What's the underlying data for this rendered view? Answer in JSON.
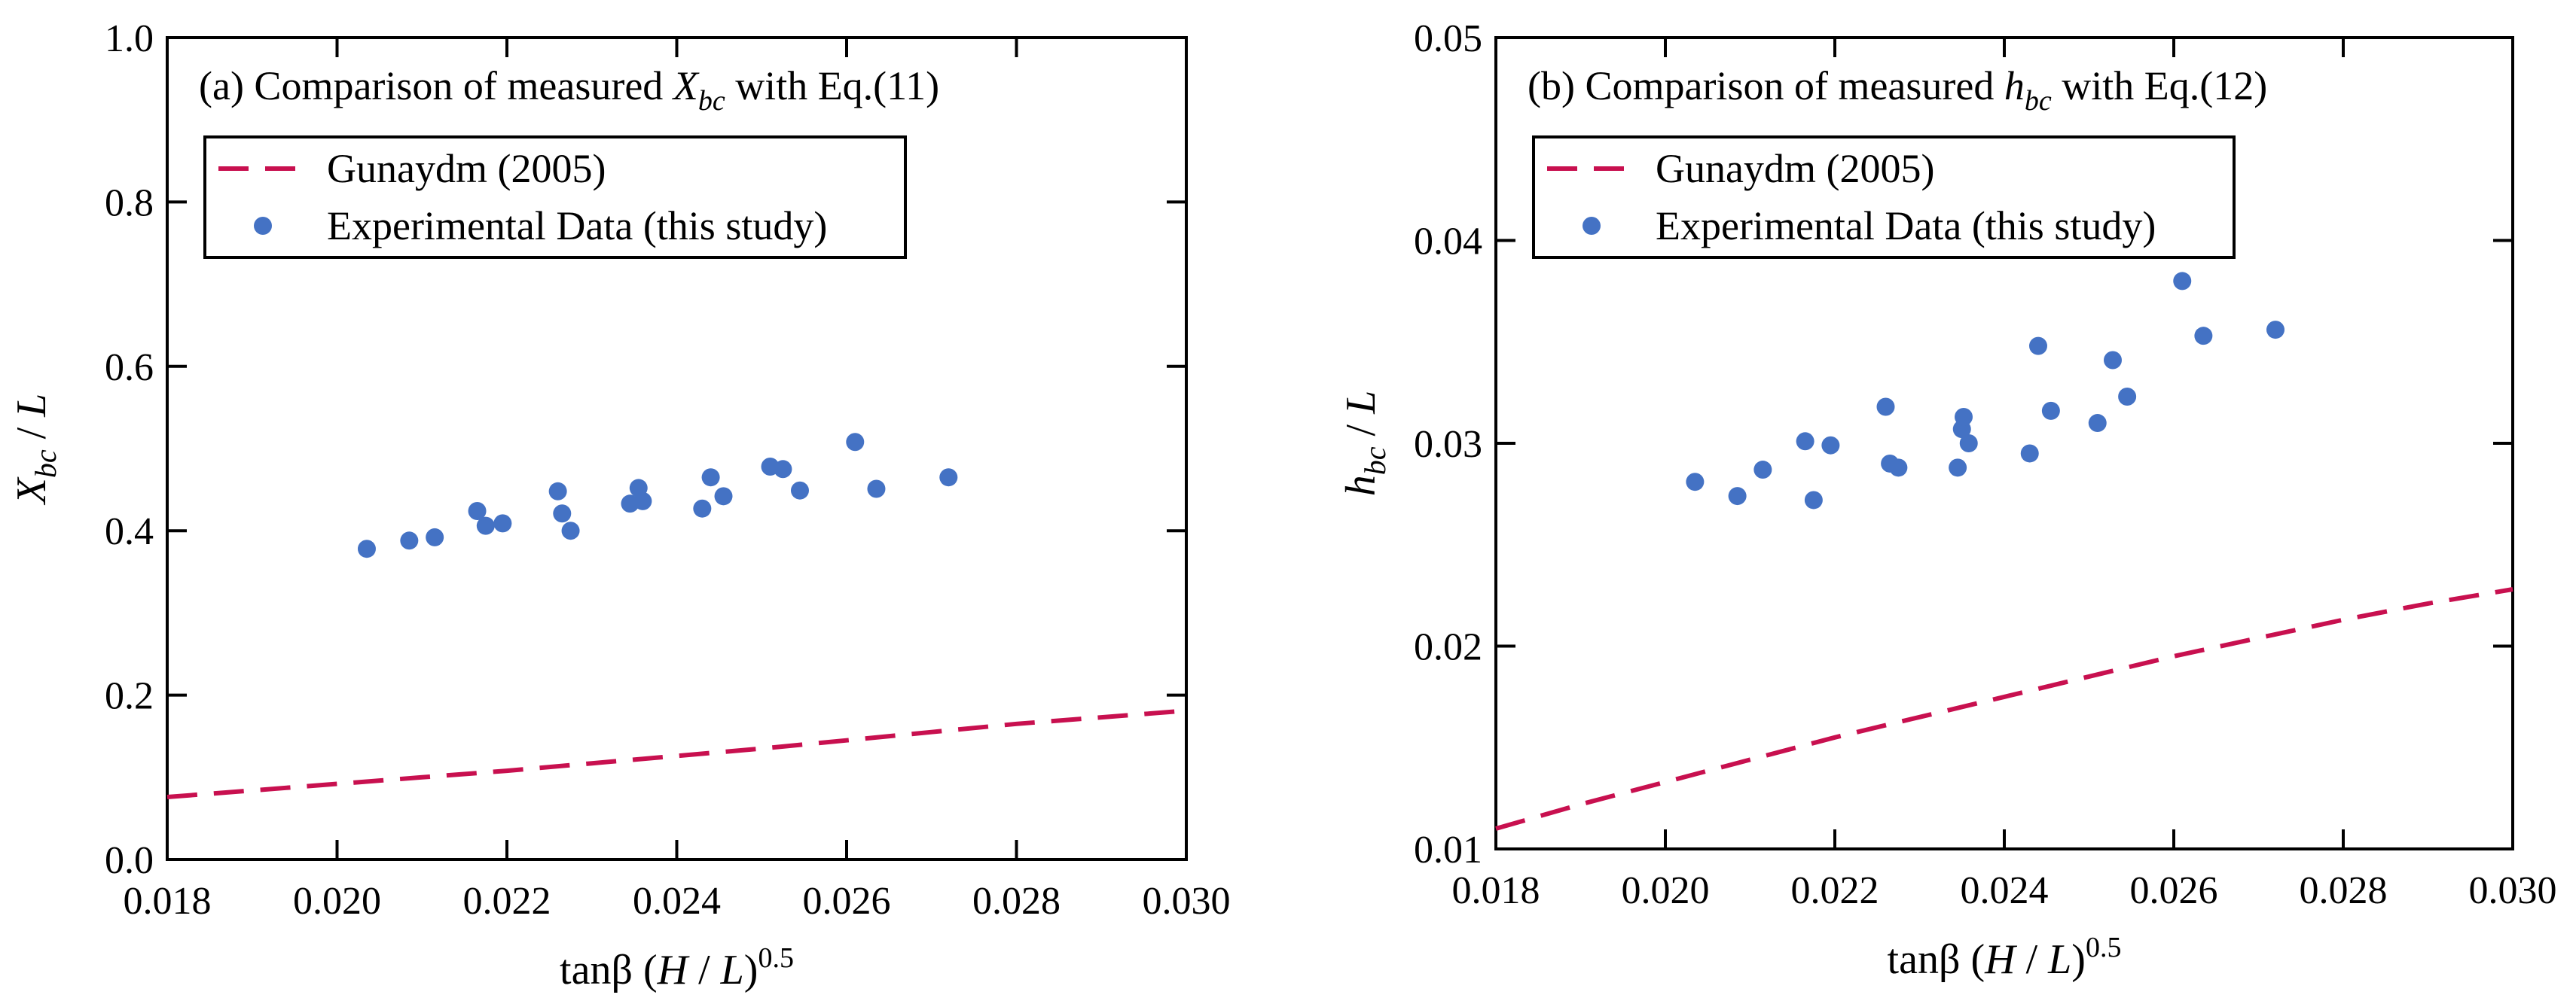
{
  "chart_data": [
    {
      "type": "scatter",
      "title_prefix": "(a) Comparison of measured ",
      "title_var": "X",
      "title_sub": "bc",
      "title_suffix": " with Eq.(11)",
      "xlabel_main": "tanβ (",
      "xlabel_var1": "H",
      "xlabel_mid": " / ",
      "xlabel_var2": "L",
      "xlabel_close": ")",
      "xlabel_exp": "0.5",
      "ylabel_var": "X",
      "ylabel_sub": "bc",
      "ylabel_rest": " / ",
      "ylabel_var2": "L",
      "xlim": [
        0.018,
        0.03
      ],
      "ylim": [
        0.0,
        1.0
      ],
      "x_ticks": [
        "0.018",
        "0.020",
        "0.022",
        "0.024",
        "0.026",
        "0.028",
        "0.030"
      ],
      "y_ticks": [
        "0.0",
        "0.2",
        "0.4",
        "0.6",
        "0.8",
        "1.0"
      ],
      "legend": {
        "position": "upper-left",
        "entries": [
          "Gunaydm (2005)",
          "Experimental Data (this study)"
        ]
      },
      "series": [
        {
          "name": "Gunaydm (2005)",
          "style": "dashed-line",
          "color": "#c8104f",
          "x": [
            0.018,
            0.019,
            0.02,
            0.021,
            0.022,
            0.023,
            0.024,
            0.025,
            0.026,
            0.027,
            0.028,
            0.029,
            0.03
          ],
          "y": [
            0.076,
            0.084,
            0.092,
            0.1,
            0.108,
            0.117,
            0.126,
            0.135,
            0.145,
            0.155,
            0.165,
            0.173,
            0.181
          ]
        },
        {
          "name": "Experimental Data (this study)",
          "style": "markers",
          "color": "#4472c4",
          "x": [
            0.02035,
            0.02085,
            0.02115,
            0.02165,
            0.02175,
            0.02195,
            0.0226,
            0.02265,
            0.02275,
            0.02345,
            0.02355,
            0.0236,
            0.0243,
            0.0244,
            0.02455,
            0.0251,
            0.02525,
            0.02545,
            0.0261,
            0.02635,
            0.0272
          ],
          "y": [
            0.378,
            0.388,
            0.392,
            0.424,
            0.406,
            0.409,
            0.448,
            0.421,
            0.4,
            0.433,
            0.452,
            0.436,
            0.427,
            0.465,
            0.442,
            0.478,
            0.475,
            0.449,
            0.508,
            0.451,
            0.465
          ]
        }
      ]
    },
    {
      "type": "scatter",
      "title_prefix": "(b) Comparison of measured ",
      "title_var": "h",
      "title_sub": "bc",
      "title_suffix": " with Eq.(12)",
      "xlabel_main": "tanβ (",
      "xlabel_var1": "H",
      "xlabel_mid": " / ",
      "xlabel_var2": "L",
      "xlabel_close": ")",
      "xlabel_exp": "0.5",
      "ylabel_var": "h",
      "ylabel_sub": "bc",
      "ylabel_rest": " / ",
      "ylabel_var2": "L",
      "xlim": [
        0.018,
        0.03
      ],
      "ylim": [
        0.01,
        0.05
      ],
      "x_ticks": [
        "0.018",
        "0.020",
        "0.022",
        "0.024",
        "0.026",
        "0.028",
        "0.030"
      ],
      "y_ticks": [
        "0.01",
        "0.02",
        "0.03",
        "0.04",
        "0.05"
      ],
      "legend": {
        "position": "upper-left",
        "entries": [
          "Gunaydm (2005)",
          "Experimental Data (this study)"
        ]
      },
      "series": [
        {
          "name": "Gunaydm (2005)",
          "style": "dashed-line",
          "color": "#c8104f",
          "x": [
            0.018,
            0.019,
            0.02,
            0.021,
            0.022,
            0.023,
            0.024,
            0.025,
            0.026,
            0.027,
            0.028,
            0.029,
            0.03
          ],
          "y": [
            0.011,
            0.0122,
            0.0133,
            0.0144,
            0.0155,
            0.0165,
            0.0175,
            0.0185,
            0.0195,
            0.0204,
            0.0213,
            0.0221,
            0.0228
          ]
        },
        {
          "name": "Experimental Data (this study)",
          "style": "markers",
          "color": "#4472c4",
          "x": [
            0.02035,
            0.02085,
            0.02115,
            0.02165,
            0.02175,
            0.02195,
            0.0226,
            0.02265,
            0.02275,
            0.02345,
            0.0235,
            0.02352,
            0.02358,
            0.0243,
            0.0244,
            0.02455,
            0.0251,
            0.02528,
            0.02545,
            0.0261,
            0.02635,
            0.0272
          ],
          "y": [
            0.0281,
            0.0274,
            0.0287,
            0.0301,
            0.0272,
            0.0299,
            0.0318,
            0.029,
            0.0288,
            0.0288,
            0.0307,
            0.0313,
            0.03,
            0.0295,
            0.0348,
            0.0316,
            0.031,
            0.0341,
            0.0323,
            0.038,
            0.0353,
            0.0356
          ]
        }
      ]
    }
  ]
}
